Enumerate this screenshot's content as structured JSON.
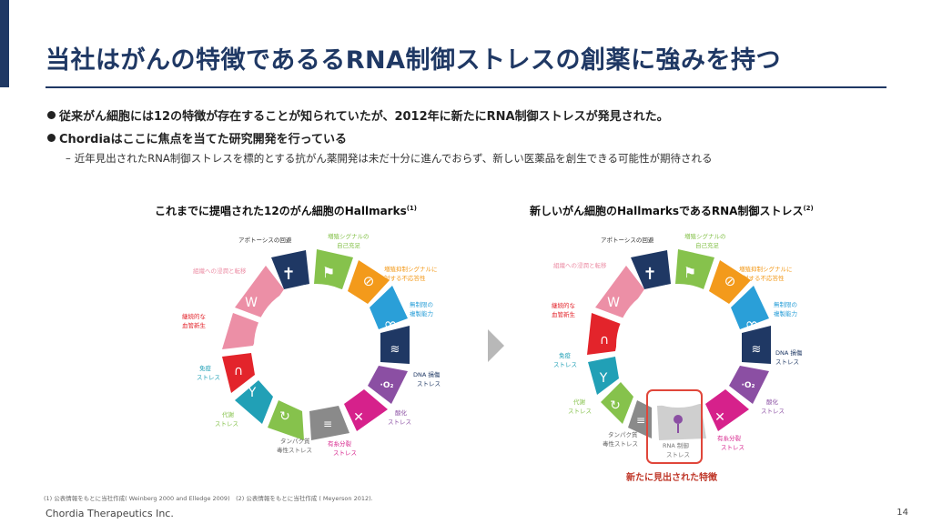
{
  "title": "当社はがんの特徴であるるRNA制御ストレスの創薬に強みを持つ",
  "bullets": [
    "従来がん細胞には12の特徴が存在することが知られていたが、2012年に新たにRNA制御ストレスが発見された。",
    "Chordiaはここに焦点を当てた研究開発を行っている"
  ],
  "sub_bullet": "近年見出されたRNA制御ストレスを標的とする抗がん薬開発は未だ十分に進んでおらず、新しい医薬品を創生できる可能性が期待される",
  "left_chart": {
    "title": "これまでに提唱された12のがん細胞のHallmarks",
    "title_note": "(1)",
    "labels": {
      "apoptosis": "アポトーシスの回避",
      "growth1": "増殖シグナルの",
      "growth2": "自己充足",
      "antigrowth1": "増殖抑制シグナルに",
      "antigrowth2": "対する不応答性",
      "immortal1": "無制限の",
      "immortal2": "複製能力",
      "dna1": "DNA 損傷",
      "dna2": "ストレス",
      "ox1": "酸化",
      "ox2": "ストレス",
      "mitotic1": "有糸分裂",
      "mitotic2": "ストレス",
      "protein1": "タンパク質",
      "protein2": "毒性ストレス",
      "metabolic1": "代謝",
      "metabolic2": "ストレス",
      "immune1": "免疫",
      "immune2": "ストレス",
      "angio1": "継続的な",
      "angio2": "血管新生",
      "invasion": "組織への浸潤と転移"
    }
  },
  "right_chart": {
    "title": "新しいがん細胞のHallmarksであるRNA制御ストレス",
    "title_note": "(2)",
    "labels": {
      "apoptosis": "アポトーシスの回避",
      "growth1": "増殖シグナルの",
      "growth2": "自己充足",
      "antigrowth1": "増殖抑制シグナルに",
      "antigrowth2": "対する不応答性",
      "immortal1": "無制限の",
      "immortal2": "複製能力",
      "dna1": "DNA 損傷",
      "dna2": "ストレス",
      "ox1": "酸化",
      "ox2": "ストレス",
      "mitotic1": "有糸分裂",
      "mitotic2": "ストレス",
      "rna1": "RNA 制御",
      "rna2": "ストレス",
      "protein1": "タンパク質",
      "protein2": "毒性ストレス",
      "metabolic1": "代謝",
      "metabolic2": "ストレス",
      "immune1": "免疫",
      "immune2": "ストレス",
      "angio1": "継続的な",
      "angio2": "血管新生",
      "invasion": "組織への浸潤と転移"
    },
    "highlight_label": "新たに見出された特徴"
  },
  "footnote": "(1) 公表情報をもとに当社作成( Weinberg 2000 and Elledge 2009)　(2) 公表情報をもとに当社作成 ( Meyerson 2012).",
  "company": "Chordia Therapeutics Inc.",
  "page_number": "14",
  "colors": {
    "navy": "#1f3864",
    "red": "#e3242b",
    "pink": "#ec8fa6",
    "green": "#86c24c",
    "orange": "#f39a1b",
    "blue": "#2a9fd8",
    "purple": "#8b4fa3",
    "magenta": "#d6218b",
    "gray": "#8a8a8a",
    "lightgray": "#cfcfcf",
    "teal": "#21a0b6",
    "highlight": "#e0463a"
  }
}
